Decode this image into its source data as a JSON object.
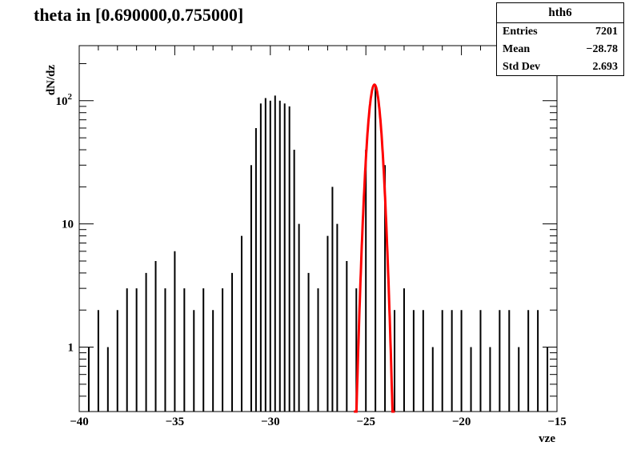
{
  "title": "theta in [0.690000,0.755000]",
  "stats": {
    "name": "hth6",
    "rows": [
      {
        "label": "Entries",
        "value": "7201"
      },
      {
        "label": "Mean",
        "value": "−28.78"
      },
      {
        "label": "Std Dev",
        "value": "2.693"
      }
    ]
  },
  "chart_data": {
    "type": "line",
    "title": "theta in [0.690000,0.755000]",
    "xlabel": "vze",
    "ylabel": "dN/dz",
    "xlim": [
      -40,
      -15
    ],
    "ylim": [
      0.3,
      280
    ],
    "yscale": "log",
    "grid": false,
    "xticks": [
      -40,
      -35,
      -30,
      -25,
      -20,
      -15
    ],
    "xtick_labels": [
      "−40",
      "−35",
      "−30",
      "−25",
      "−20",
      "−15"
    ],
    "yticks": [
      1,
      10,
      100
    ],
    "ytick_labels": [
      "1",
      "10",
      "10^2"
    ],
    "series": [
      {
        "color": "#000000",
        "style": "histogram",
        "x": [
          -39.5,
          -39.0,
          -38.5,
          -38.0,
          -37.5,
          -37.0,
          -36.5,
          -36.0,
          -35.5,
          -35.0,
          -34.5,
          -34.0,
          -33.5,
          -33.0,
          -32.5,
          -32.0,
          -31.5,
          -31.0,
          -30.75,
          -30.5,
          -30.25,
          -30.0,
          -29.75,
          -29.5,
          -29.25,
          -29.0,
          -28.75,
          -28.5,
          -28.0,
          -27.5,
          -27.0,
          -26.75,
          -26.5,
          -26.0,
          -25.5,
          -25.0,
          -24.5,
          -24.0,
          -23.5,
          -23.0,
          -22.5,
          -22.0,
          -21.5,
          -21.0,
          -20.5,
          -20.0,
          -19.5,
          -19.0,
          -18.5,
          -18.0,
          -17.5,
          -17.0,
          -16.5,
          -16.0,
          -15.5
        ],
        "y": [
          1,
          2,
          1,
          2,
          3,
          3,
          4,
          5,
          3,
          6,
          3,
          2,
          3,
          2,
          3,
          4,
          8,
          30,
          60,
          95,
          105,
          100,
          110,
          100,
          95,
          90,
          40,
          10,
          4,
          3,
          8,
          20,
          10,
          5,
          3,
          40,
          135,
          30,
          2,
          3,
          2,
          2,
          1,
          2,
          2,
          2,
          1,
          2,
          1,
          2,
          2,
          1,
          2,
          2,
          1
        ]
      },
      {
        "color": "#ff0000",
        "style": "gaussian-fit",
        "amplitude": 135,
        "mean": -24.55,
        "sigma": 0.27
      }
    ]
  }
}
